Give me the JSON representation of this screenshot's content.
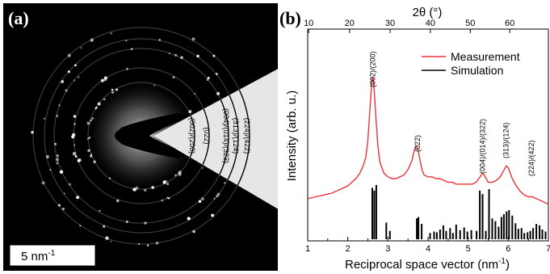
{
  "panel_a": {
    "label": "(a)",
    "scale_bar_label": "5 nm",
    "scale_bar_sup": "-1",
    "rings": [
      {
        "label": "(002)/(200)"
      },
      {
        "label": "(022)"
      },
      {
        "label": "(004)/(014)/(322)"
      },
      {
        "label": "(313)/(124)"
      },
      {
        "label": "(224)/(422)"
      }
    ],
    "colors": {
      "background": "#000000",
      "wedge": "#e6e6e6",
      "scale_box": "#ffffff"
    }
  },
  "panel_b": {
    "label": "(b)",
    "colors": {
      "measurement": "#e8343a",
      "simulation": "#000000"
    }
  },
  "chart_data": {
    "type": "line",
    "xlabel": "Reciprocal space vector (nm",
    "xlabel_sup": "-1",
    "xlabel_end": ")",
    "ylabel": "Intensity (arb. u.)",
    "x2label": "2θ (°)",
    "xlim": [
      1,
      7
    ],
    "xticks": [
      "1",
      "2",
      "3",
      "4",
      "5",
      "6",
      "7"
    ],
    "x2ticks": [
      "10",
      "20",
      "30",
      "40",
      "50",
      "60"
    ],
    "x2tick_positions": [
      1.024,
      2.043,
      3.054,
      4.058,
      5.053,
      6.037
    ],
    "legend": [
      {
        "name": "Measurement",
        "color": "#e8343a"
      },
      {
        "name": "Simulation",
        "color": "#000000"
      }
    ],
    "legend_position": "top-right",
    "measurement": {
      "name": "Measurement",
      "x": [
        1.0,
        1.2,
        1.4,
        1.6,
        1.8,
        2.0,
        2.1,
        2.2,
        2.3,
        2.4,
        2.45,
        2.5,
        2.55,
        2.6,
        2.62,
        2.65,
        2.7,
        2.75,
        2.8,
        2.9,
        3.0,
        3.1,
        3.2,
        3.3,
        3.4,
        3.5,
        3.6,
        3.65,
        3.7,
        3.75,
        3.8,
        3.85,
        3.9,
        4.0,
        4.1,
        4.2,
        4.3,
        4.4,
        4.5,
        4.6,
        4.7,
        4.8,
        4.9,
        5.0,
        5.1,
        5.2,
        5.3,
        5.35,
        5.4,
        5.45,
        5.5,
        5.6,
        5.7,
        5.8,
        5.9,
        5.95,
        6.0,
        6.05,
        6.1,
        6.2,
        6.3,
        6.4,
        6.5,
        6.6,
        6.7,
        6.8,
        6.9,
        7.0
      ],
      "y": [
        0.13,
        0.14,
        0.15,
        0.16,
        0.18,
        0.2,
        0.22,
        0.24,
        0.27,
        0.32,
        0.36,
        0.45,
        0.62,
        0.78,
        0.8,
        0.76,
        0.58,
        0.42,
        0.33,
        0.27,
        0.25,
        0.24,
        0.24,
        0.25,
        0.26,
        0.29,
        0.34,
        0.39,
        0.42,
        0.4,
        0.34,
        0.29,
        0.26,
        0.25,
        0.25,
        0.24,
        0.24,
        0.23,
        0.22,
        0.22,
        0.21,
        0.21,
        0.21,
        0.21,
        0.21,
        0.22,
        0.25,
        0.27,
        0.26,
        0.24,
        0.22,
        0.22,
        0.23,
        0.25,
        0.29,
        0.31,
        0.3,
        0.27,
        0.24,
        0.2,
        0.17,
        0.15,
        0.14,
        0.14,
        0.13,
        0.12,
        0.11,
        0.1
      ]
    },
    "simulation": {
      "name": "Simulation",
      "x": [
        2.61,
        2.66,
        2.71,
        2.96,
        3.05,
        3.72,
        3.76,
        3.84,
        4.05,
        4.15,
        4.22,
        4.3,
        4.38,
        4.45,
        4.55,
        4.62,
        4.7,
        4.8,
        4.9,
        4.98,
        5.08,
        5.21,
        5.29,
        5.36,
        5.44,
        5.52,
        5.6,
        5.68,
        5.76,
        5.83,
        5.89,
        5.96,
        6.02,
        6.1,
        6.18,
        6.25,
        6.33,
        6.4,
        6.48,
        6.55,
        6.62,
        6.7,
        6.78,
        6.85,
        6.93
      ],
      "y": [
        0.74,
        0.7,
        0.78,
        0.24,
        0.12,
        0.3,
        0.32,
        0.22,
        0.09,
        0.11,
        0.1,
        0.14,
        0.2,
        0.12,
        0.16,
        0.09,
        0.21,
        0.13,
        0.17,
        0.11,
        0.13,
        0.12,
        0.7,
        0.65,
        0.12,
        0.72,
        0.3,
        0.26,
        0.18,
        0.32,
        0.36,
        0.4,
        0.42,
        0.34,
        0.23,
        0.15,
        0.16,
        0.09,
        0.1,
        0.12,
        0.16,
        0.22,
        0.2,
        0.14,
        0.11
      ]
    },
    "peak_labels": [
      {
        "text": "(002)/(200)",
        "x": 2.62
      },
      {
        "text": "(022)",
        "x": 3.74
      },
      {
        "text": "(004)/(014)/(322)",
        "x": 5.36
      },
      {
        "text": "(313)/(124)",
        "x": 5.94
      },
      {
        "text": "(224)/(422)",
        "x": 6.58
      }
    ]
  }
}
